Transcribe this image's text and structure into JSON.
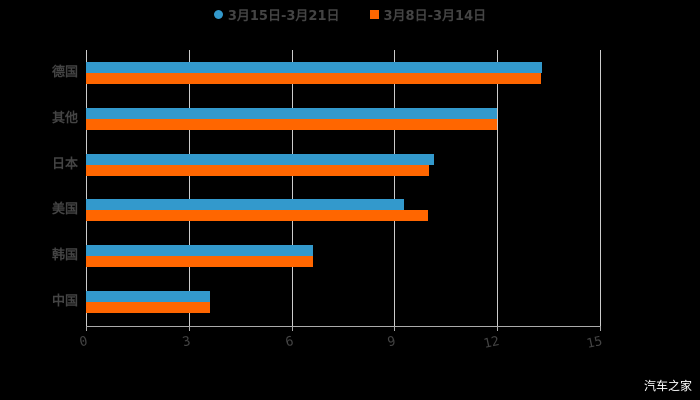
{
  "chart_data": {
    "type": "bar",
    "orientation": "horizontal",
    "title": "",
    "xlabel": "",
    "ylabel": "",
    "categories": [
      "德国",
      "其他",
      "日本",
      "美国",
      "韩国",
      "中国"
    ],
    "series": [
      {
        "name": "3月15日-3月21日",
        "color": "#3399cc",
        "values": [
          13.3,
          12.0,
          10.15,
          9.28,
          6.62,
          3.62
        ]
      },
      {
        "name": "3月8日-3月14日",
        "color": "#ff6600",
        "values": [
          13.27,
          12.0,
          10.0,
          9.98,
          6.62,
          3.62
        ]
      }
    ],
    "xlim": [
      0,
      15
    ],
    "xticks": [
      "0",
      "3",
      "6",
      "9",
      "12",
      "15"
    ],
    "grid": true,
    "legend_position": "top"
  },
  "legend": {
    "series_0": "3月15日-3月21日",
    "series_1": "3月8日-3月14日"
  },
  "watermark": "汽车之家"
}
